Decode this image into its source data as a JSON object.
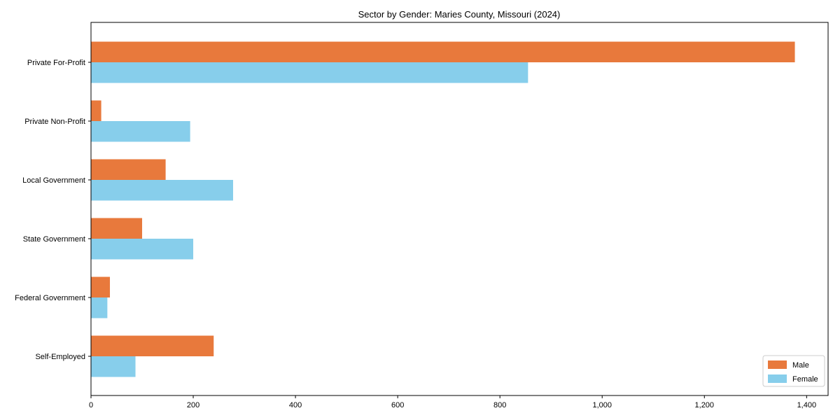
{
  "figure": {
    "background": "#ffffff",
    "axis_color": "#000000",
    "text_color": "#000000",
    "legend_border_color": "#cccccc"
  },
  "chart_data": {
    "type": "bar",
    "orientation": "horizontal",
    "title": "Sector by Gender: Maries County, Missouri (2024)",
    "categories": [
      "Private For-Profit",
      "Private Non-Profit",
      "Local Government",
      "State Government",
      "Federal Government",
      "Self-Employed"
    ],
    "series": [
      {
        "name": "Male",
        "color": "#E8793C",
        "values": [
          1377,
          20,
          146,
          100,
          37,
          240
        ]
      },
      {
        "name": "Female",
        "color": "#87CEEB",
        "values": [
          855,
          194,
          278,
          200,
          32,
          87
        ]
      }
    ],
    "xlabel": "",
    "ylabel": "",
    "xlim": [
      0,
      1442
    ],
    "xticks": [
      0,
      200,
      400,
      600,
      800,
      1000,
      1200,
      1400
    ],
    "xtick_labels": [
      "0",
      "200",
      "400",
      "600",
      "800",
      "1,000",
      "1,200",
      "1,400"
    ],
    "grid": false,
    "legend": {
      "position": "lower right",
      "entries": [
        "Male",
        "Female"
      ]
    }
  }
}
